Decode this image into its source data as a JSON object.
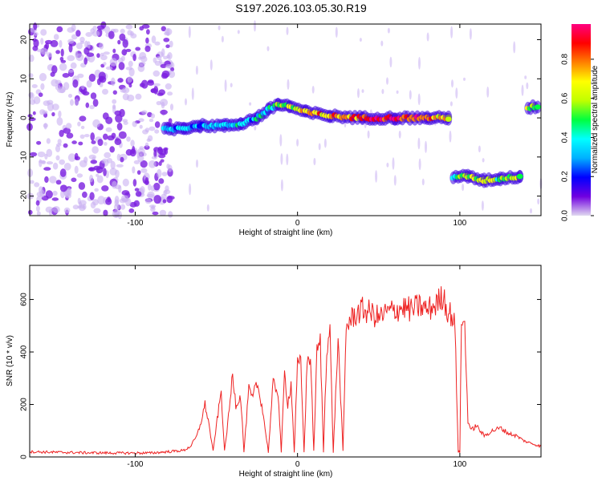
{
  "title": "S197.2026.103.05.30.R19",
  "chart_data": [
    {
      "type": "heatmap",
      "xlabel": "Height of straight line (km)",
      "ylabel": "Frequency (Hz)",
      "xlim": [
        -165,
        150
      ],
      "ylim": [
        -25,
        24
      ],
      "xticks": [
        -100,
        0,
        100
      ],
      "yticks": [
        -20,
        -10,
        0,
        10,
        20
      ],
      "colorbar": {
        "label": "Normalized spectral amplitude",
        "range": [
          0.0,
          0.98
        ],
        "ticks": [
          0.0,
          0.2,
          0.4,
          0.6,
          0.8
        ],
        "tick_labels": [
          "0.0",
          "0.2",
          "0.4",
          "0.6",
          "0.8"
        ],
        "colors": [
          "#e0d8f0",
          "#7000e0",
          "#0000ff",
          "#00b0ff",
          "#00ffff",
          "#00ff40",
          "#c0ff00",
          "#ffff00",
          "#ff8000",
          "#ff0000",
          "#ff0080"
        ]
      },
      "noise_region": {
        "x_range": [
          -165,
          -77
        ],
        "freq_range": [
          -25,
          24
        ],
        "level": 0.05
      },
      "ridge": [
        {
          "x": -82,
          "freq": -3,
          "amp": 0.4
        },
        {
          "x": -70,
          "freq": -2.5,
          "amp": 0.35
        },
        {
          "x": -60,
          "freq": -2,
          "amp": 0.3
        },
        {
          "x": -45,
          "freq": -2,
          "amp": 0.3
        },
        {
          "x": -35,
          "freq": -1.5,
          "amp": 0.35
        },
        {
          "x": -25,
          "freq": 0,
          "amp": 0.35
        },
        {
          "x": -18,
          "freq": 2,
          "amp": 0.45
        },
        {
          "x": -12,
          "freq": 3.5,
          "amp": 0.55
        },
        {
          "x": -5,
          "freq": 3,
          "amp": 0.6
        },
        {
          "x": 5,
          "freq": 1.5,
          "amp": 0.7
        },
        {
          "x": 20,
          "freq": 0.5,
          "amp": 0.75
        },
        {
          "x": 40,
          "freq": 0,
          "amp": 0.8
        },
        {
          "x": 60,
          "freq": 0,
          "amp": 0.95
        },
        {
          "x": 80,
          "freq": 0,
          "amp": 0.85
        },
        {
          "x": 93,
          "freq": 0,
          "amp": 0.6
        },
        {
          "x": 96,
          "freq": -15,
          "amp": 0.5
        },
        {
          "x": 105,
          "freq": -15,
          "amp": 0.55
        },
        {
          "x": 115,
          "freq": -16,
          "amp": 0.6
        },
        {
          "x": 125,
          "freq": -15.5,
          "amp": 0.5
        },
        {
          "x": 137,
          "freq": -15,
          "amp": 0.55
        },
        {
          "x": 142,
          "freq": 2.5,
          "amp": 0.6
        },
        {
          "x": 148,
          "freq": 3,
          "amp": 0.55
        }
      ]
    },
    {
      "type": "line",
      "xlabel": "Height of straight line (km)",
      "ylabel": "SNR (10 * v/v)",
      "xlim": [
        -165,
        150
      ],
      "ylim": [
        0,
        730
      ],
      "xticks": [
        -100,
        0,
        100
      ],
      "yticks": [
        0,
        200,
        400,
        600
      ],
      "color": "#ee2222",
      "series": [
        {
          "name": "SNR",
          "x": [
            -165,
            -150,
            -130,
            -110,
            -90,
            -80,
            -70,
            -66,
            -62,
            -60,
            -57,
            -55,
            -52,
            -50,
            -47,
            -45,
            -42,
            -40,
            -38,
            -35,
            -33,
            -30,
            -28,
            -25,
            -22,
            -18,
            -15,
            -12,
            -10,
            -8,
            -6,
            -4,
            -2,
            0,
            2,
            4,
            6,
            8,
            10,
            12,
            14,
            16,
            18,
            20,
            22,
            25,
            28,
            30,
            35,
            40,
            45,
            50,
            55,
            60,
            65,
            70,
            75,
            80,
            85,
            88,
            90,
            92,
            95,
            97,
            99,
            100,
            101,
            103,
            105,
            107,
            110,
            115,
            120,
            125,
            130,
            135,
            140,
            145,
            150
          ],
          "y": [
            20,
            18,
            16,
            15,
            15,
            20,
            25,
            40,
            80,
            120,
            200,
            140,
            20,
            120,
            250,
            20,
            180,
            320,
            200,
            230,
            20,
            260,
            220,
            280,
            200,
            20,
            280,
            250,
            20,
            320,
            200,
            280,
            20,
            350,
            360,
            20,
            370,
            380,
            20,
            400,
            440,
            20,
            420,
            480,
            20,
            450,
            20,
            500,
            540,
            560,
            550,
            530,
            550,
            560,
            570,
            560,
            575,
            560,
            580,
            600,
            620,
            560,
            540,
            500,
            20,
            20,
            520,
            500,
            140,
            100,
            120,
            80,
            100,
            110,
            90,
            80,
            60,
            50,
            40
          ]
        }
      ]
    }
  ]
}
